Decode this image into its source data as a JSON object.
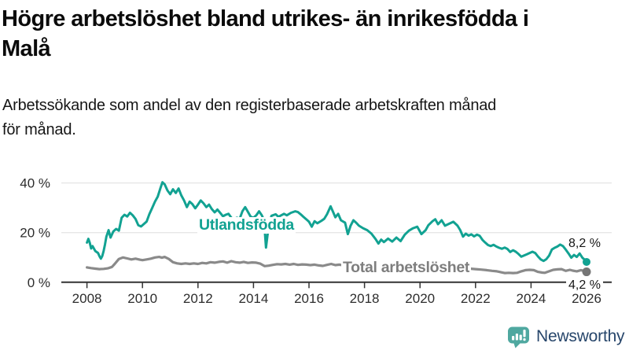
{
  "header": {
    "title_lines": [
      "Högre arbetslöshet bland utrikes- än inrikesfödda i",
      "Malå"
    ],
    "subtitle_lines": [
      "Arbetssökande som andel av den registerbaserade arbetskraften månad",
      "för månad."
    ]
  },
  "footer": {
    "brand": "Newsworthy",
    "brand_color": "#27466b",
    "logo_color": "#4fa8a0"
  },
  "chart_data": {
    "type": "line",
    "title": "Högre arbetslöshet bland utrikes- än inrikesfödda i Malå",
    "subtitle": "Arbetssökande som andel av den registerbaserade arbetskraften månad för månad.",
    "y_unit": "%",
    "grid": "horizontal",
    "legend_position": "inline-labels",
    "x_range": [
      2008,
      2026
    ],
    "y_range": [
      0,
      42
    ],
    "x_ticks": [
      2008,
      2010,
      2012,
      2014,
      2016,
      2018,
      2020,
      2022,
      2024,
      2026
    ],
    "y_ticks": [
      {
        "value": 0,
        "label": "0 %"
      },
      {
        "value": 20,
        "label": "20 %"
      },
      {
        "value": 40,
        "label": "40 %"
      }
    ],
    "series": [
      {
        "name": "Utlandsfödda",
        "color": "#12a292",
        "end_value": 8.2,
        "end_label": "8,2 %",
        "points": [
          [
            2008.0,
            16.0
          ],
          [
            2008.05,
            17.5
          ],
          [
            2008.1,
            16.0
          ],
          [
            2008.15,
            13.6
          ],
          [
            2008.2,
            14.6
          ],
          [
            2008.3,
            12.6
          ],
          [
            2008.4,
            11.8
          ],
          [
            2008.45,
            10.5
          ],
          [
            2008.5,
            9.5
          ],
          [
            2008.55,
            10.5
          ],
          [
            2008.6,
            12.6
          ],
          [
            2008.65,
            15.2
          ],
          [
            2008.7,
            18.4
          ],
          [
            2008.78,
            21.0
          ],
          [
            2008.85,
            18.0
          ],
          [
            2008.95,
            20.5
          ],
          [
            2009.05,
            21.5
          ],
          [
            2009.15,
            20.8
          ],
          [
            2009.25,
            26.0
          ],
          [
            2009.35,
            27.2
          ],
          [
            2009.45,
            26.5
          ],
          [
            2009.55,
            28.0
          ],
          [
            2009.65,
            27.0
          ],
          [
            2009.75,
            25.5
          ],
          [
            2009.85,
            23.0
          ],
          [
            2009.95,
            22.5
          ],
          [
            2010.05,
            23.5
          ],
          [
            2010.15,
            24.5
          ],
          [
            2010.25,
            27.5
          ],
          [
            2010.35,
            30.0
          ],
          [
            2010.45,
            32.5
          ],
          [
            2010.55,
            34.5
          ],
          [
            2010.65,
            38.0
          ],
          [
            2010.72,
            40.3
          ],
          [
            2010.8,
            39.5
          ],
          [
            2010.9,
            37.0
          ],
          [
            2011.0,
            35.5
          ],
          [
            2011.1,
            37.5
          ],
          [
            2011.2,
            36.0
          ],
          [
            2011.3,
            37.8
          ],
          [
            2011.4,
            35.0
          ],
          [
            2011.5,
            33.0
          ],
          [
            2011.6,
            30.3
          ],
          [
            2011.7,
            32.5
          ],
          [
            2011.8,
            31.5
          ],
          [
            2011.9,
            29.8
          ],
          [
            2012.0,
            31.3
          ],
          [
            2012.1,
            33.0
          ],
          [
            2012.2,
            31.8
          ],
          [
            2012.3,
            30.3
          ],
          [
            2012.4,
            31.3
          ],
          [
            2012.5,
            29.5
          ],
          [
            2012.6,
            28.2
          ],
          [
            2012.7,
            29.3
          ],
          [
            2012.8,
            28.0
          ],
          [
            2012.9,
            26.6
          ],
          [
            2013.0,
            27.2
          ],
          [
            2013.1,
            27.6
          ],
          [
            2013.2,
            26.0
          ],
          [
            2013.3,
            25.4
          ],
          [
            2013.4,
            26.0
          ],
          [
            2013.5,
            25.6
          ],
          [
            2013.6,
            28.6
          ],
          [
            2013.7,
            30.3
          ],
          [
            2013.8,
            28.4
          ],
          [
            2013.9,
            26.4
          ],
          [
            2014.0,
            26.0
          ],
          [
            2014.1,
            27.0
          ],
          [
            2014.2,
            28.6
          ],
          [
            2014.3,
            27.0
          ],
          [
            2014.38,
            25.0
          ],
          [
            2014.45,
            14.0
          ],
          [
            2014.55,
            23.0
          ],
          [
            2014.65,
            26.8
          ],
          [
            2014.8,
            27.4
          ],
          [
            2014.9,
            26.4
          ],
          [
            2015.0,
            27.0
          ],
          [
            2015.1,
            27.6
          ],
          [
            2015.2,
            27.0
          ],
          [
            2015.35,
            28.0
          ],
          [
            2015.5,
            28.6
          ],
          [
            2015.6,
            28.3
          ],
          [
            2015.7,
            27.4
          ],
          [
            2015.8,
            26.4
          ],
          [
            2015.9,
            25.4
          ],
          [
            2016.0,
            24.4
          ],
          [
            2016.1,
            22.4
          ],
          [
            2016.2,
            24.6
          ],
          [
            2016.3,
            23.8
          ],
          [
            2016.45,
            24.8
          ],
          [
            2016.55,
            25.6
          ],
          [
            2016.65,
            27.4
          ],
          [
            2016.78,
            30.6
          ],
          [
            2016.88,
            28.0
          ],
          [
            2016.95,
            26.2
          ],
          [
            2017.05,
            27.6
          ],
          [
            2017.15,
            25.0
          ],
          [
            2017.3,
            24.0
          ],
          [
            2017.4,
            19.4
          ],
          [
            2017.5,
            22.8
          ],
          [
            2017.6,
            25.0
          ],
          [
            2017.7,
            24.0
          ],
          [
            2017.8,
            22.8
          ],
          [
            2017.95,
            21.8
          ],
          [
            2018.1,
            21.0
          ],
          [
            2018.25,
            19.6
          ],
          [
            2018.4,
            17.4
          ],
          [
            2018.5,
            15.6
          ],
          [
            2018.6,
            17.2
          ],
          [
            2018.7,
            16.2
          ],
          [
            2018.85,
            17.6
          ],
          [
            2019.0,
            16.4
          ],
          [
            2019.15,
            18.0
          ],
          [
            2019.3,
            16.6
          ],
          [
            2019.45,
            19.2
          ],
          [
            2019.6,
            20.8
          ],
          [
            2019.75,
            21.8
          ],
          [
            2019.9,
            22.4
          ],
          [
            2020.05,
            19.4
          ],
          [
            2020.2,
            21.0
          ],
          [
            2020.3,
            23.0
          ],
          [
            2020.45,
            24.6
          ],
          [
            2020.55,
            25.4
          ],
          [
            2020.65,
            23.4
          ],
          [
            2020.78,
            25.0
          ],
          [
            2020.9,
            22.8
          ],
          [
            2021.05,
            23.6
          ],
          [
            2021.2,
            24.4
          ],
          [
            2021.35,
            22.8
          ],
          [
            2021.45,
            21.0
          ],
          [
            2021.55,
            18.4
          ],
          [
            2021.65,
            19.6
          ],
          [
            2021.75,
            18.8
          ],
          [
            2021.85,
            19.3
          ],
          [
            2021.95,
            18.5
          ],
          [
            2022.05,
            19.2
          ],
          [
            2022.15,
            18.7
          ],
          [
            2022.25,
            17.1
          ],
          [
            2022.35,
            16.0
          ],
          [
            2022.45,
            15.0
          ],
          [
            2022.55,
            14.6
          ],
          [
            2022.65,
            15.1
          ],
          [
            2022.75,
            14.4
          ],
          [
            2022.85,
            13.9
          ],
          [
            2022.95,
            13.5
          ],
          [
            2023.05,
            14.0
          ],
          [
            2023.15,
            13.4
          ],
          [
            2023.25,
            12.2
          ],
          [
            2023.35,
            12.9
          ],
          [
            2023.45,
            12.3
          ],
          [
            2023.55,
            11.4
          ],
          [
            2023.65,
            10.3
          ],
          [
            2023.75,
            10.8
          ],
          [
            2023.85,
            11.3
          ],
          [
            2023.95,
            11.8
          ],
          [
            2024.05,
            12.3
          ],
          [
            2024.15,
            11.8
          ],
          [
            2024.25,
            10.4
          ],
          [
            2024.35,
            9.2
          ],
          [
            2024.45,
            8.6
          ],
          [
            2024.55,
            9.3
          ],
          [
            2024.65,
            10.7
          ],
          [
            2024.75,
            13.2
          ],
          [
            2024.85,
            13.9
          ],
          [
            2024.95,
            14.4
          ],
          [
            2025.05,
            15.2
          ],
          [
            2025.15,
            14.6
          ],
          [
            2025.25,
            13.2
          ],
          [
            2025.35,
            11.6
          ],
          [
            2025.45,
            9.9
          ],
          [
            2025.55,
            11.0
          ],
          [
            2025.65,
            10.2
          ],
          [
            2025.75,
            11.6
          ],
          [
            2025.85,
            9.9
          ],
          [
            2025.92,
            9.2
          ],
          [
            2026.0,
            8.2
          ]
        ]
      },
      {
        "name": "Total arbetslöshet",
        "color": "#8a8a8a",
        "end_value": 4.2,
        "end_label": "4,2 %",
        "points": [
          [
            2008.0,
            6.0
          ],
          [
            2008.15,
            5.7
          ],
          [
            2008.3,
            5.5
          ],
          [
            2008.45,
            5.3
          ],
          [
            2008.6,
            5.4
          ],
          [
            2008.75,
            5.6
          ],
          [
            2008.9,
            6.2
          ],
          [
            2009.0,
            7.4
          ],
          [
            2009.15,
            9.4
          ],
          [
            2009.3,
            10.0
          ],
          [
            2009.45,
            9.6
          ],
          [
            2009.6,
            9.2
          ],
          [
            2009.75,
            9.5
          ],
          [
            2009.9,
            9.1
          ],
          [
            2010.0,
            8.9
          ],
          [
            2010.15,
            9.2
          ],
          [
            2010.3,
            9.5
          ],
          [
            2010.45,
            10.0
          ],
          [
            2010.6,
            10.2
          ],
          [
            2010.7,
            9.9
          ],
          [
            2010.8,
            10.2
          ],
          [
            2010.95,
            9.4
          ],
          [
            2011.1,
            8.1
          ],
          [
            2011.25,
            7.6
          ],
          [
            2011.4,
            7.4
          ],
          [
            2011.55,
            7.6
          ],
          [
            2011.7,
            7.4
          ],
          [
            2011.85,
            7.6
          ],
          [
            2012.0,
            7.4
          ],
          [
            2012.15,
            7.8
          ],
          [
            2012.3,
            7.6
          ],
          [
            2012.45,
            8.1
          ],
          [
            2012.6,
            7.9
          ],
          [
            2012.75,
            8.2
          ],
          [
            2012.9,
            8.4
          ],
          [
            2013.05,
            7.9
          ],
          [
            2013.2,
            8.5
          ],
          [
            2013.35,
            8.1
          ],
          [
            2013.5,
            7.9
          ],
          [
            2013.65,
            8.2
          ],
          [
            2013.8,
            7.8
          ],
          [
            2013.95,
            8.0
          ],
          [
            2014.1,
            7.9
          ],
          [
            2014.25,
            7.5
          ],
          [
            2014.4,
            6.5
          ],
          [
            2014.55,
            6.7
          ],
          [
            2014.7,
            7.0
          ],
          [
            2014.85,
            7.3
          ],
          [
            2015.0,
            7.2
          ],
          [
            2015.15,
            7.4
          ],
          [
            2015.3,
            7.1
          ],
          [
            2015.45,
            7.4
          ],
          [
            2015.6,
            7.0
          ],
          [
            2015.75,
            7.2
          ],
          [
            2015.9,
            7.1
          ],
          [
            2016.05,
            6.9
          ],
          [
            2016.2,
            7.1
          ],
          [
            2016.35,
            6.8
          ],
          [
            2016.5,
            6.6
          ],
          [
            2016.65,
            7.0
          ],
          [
            2016.8,
            7.4
          ],
          [
            2016.95,
            6.9
          ],
          [
            2017.1,
            7.1
          ],
          [
            2017.25,
            6.8
          ],
          [
            2017.4,
            6.6
          ],
          [
            2017.55,
            6.4
          ],
          [
            2017.7,
            6.2
          ],
          [
            2017.85,
            6.4
          ],
          [
            2018.0,
            6.1
          ],
          [
            2018.2,
            5.8
          ],
          [
            2018.4,
            5.6
          ],
          [
            2018.6,
            5.8
          ],
          [
            2018.8,
            5.5
          ],
          [
            2019.0,
            5.7
          ],
          [
            2019.2,
            5.4
          ],
          [
            2019.4,
            5.6
          ],
          [
            2019.6,
            5.3
          ],
          [
            2019.8,
            5.5
          ],
          [
            2020.0,
            5.7
          ],
          [
            2020.2,
            6.1
          ],
          [
            2020.4,
            6.5
          ],
          [
            2020.6,
            6.7
          ],
          [
            2020.8,
            6.5
          ],
          [
            2021.0,
            6.6
          ],
          [
            2021.2,
            6.3
          ],
          [
            2021.4,
            6.0
          ],
          [
            2021.6,
            5.7
          ],
          [
            2021.8,
            5.5
          ],
          [
            2022.0,
            5.3
          ],
          [
            2022.2,
            5.1
          ],
          [
            2022.4,
            4.9
          ],
          [
            2022.6,
            4.6
          ],
          [
            2022.77,
            4.4
          ],
          [
            2022.9,
            4.1
          ],
          [
            2023.05,
            3.7
          ],
          [
            2023.2,
            3.8
          ],
          [
            2023.35,
            3.7
          ],
          [
            2023.5,
            3.8
          ],
          [
            2023.65,
            4.4
          ],
          [
            2023.8,
            4.9
          ],
          [
            2023.95,
            5.0
          ],
          [
            2024.1,
            4.9
          ],
          [
            2024.25,
            4.2
          ],
          [
            2024.4,
            3.9
          ],
          [
            2024.5,
            3.8
          ],
          [
            2024.65,
            4.4
          ],
          [
            2024.8,
            5.0
          ],
          [
            2024.95,
            5.2
          ],
          [
            2025.1,
            5.3
          ],
          [
            2025.25,
            4.6
          ],
          [
            2025.4,
            5.0
          ],
          [
            2025.5,
            4.7
          ],
          [
            2025.65,
            4.4
          ],
          [
            2025.8,
            4.9
          ],
          [
            2025.9,
            4.6
          ],
          [
            2026.0,
            4.2
          ]
        ]
      }
    ]
  }
}
